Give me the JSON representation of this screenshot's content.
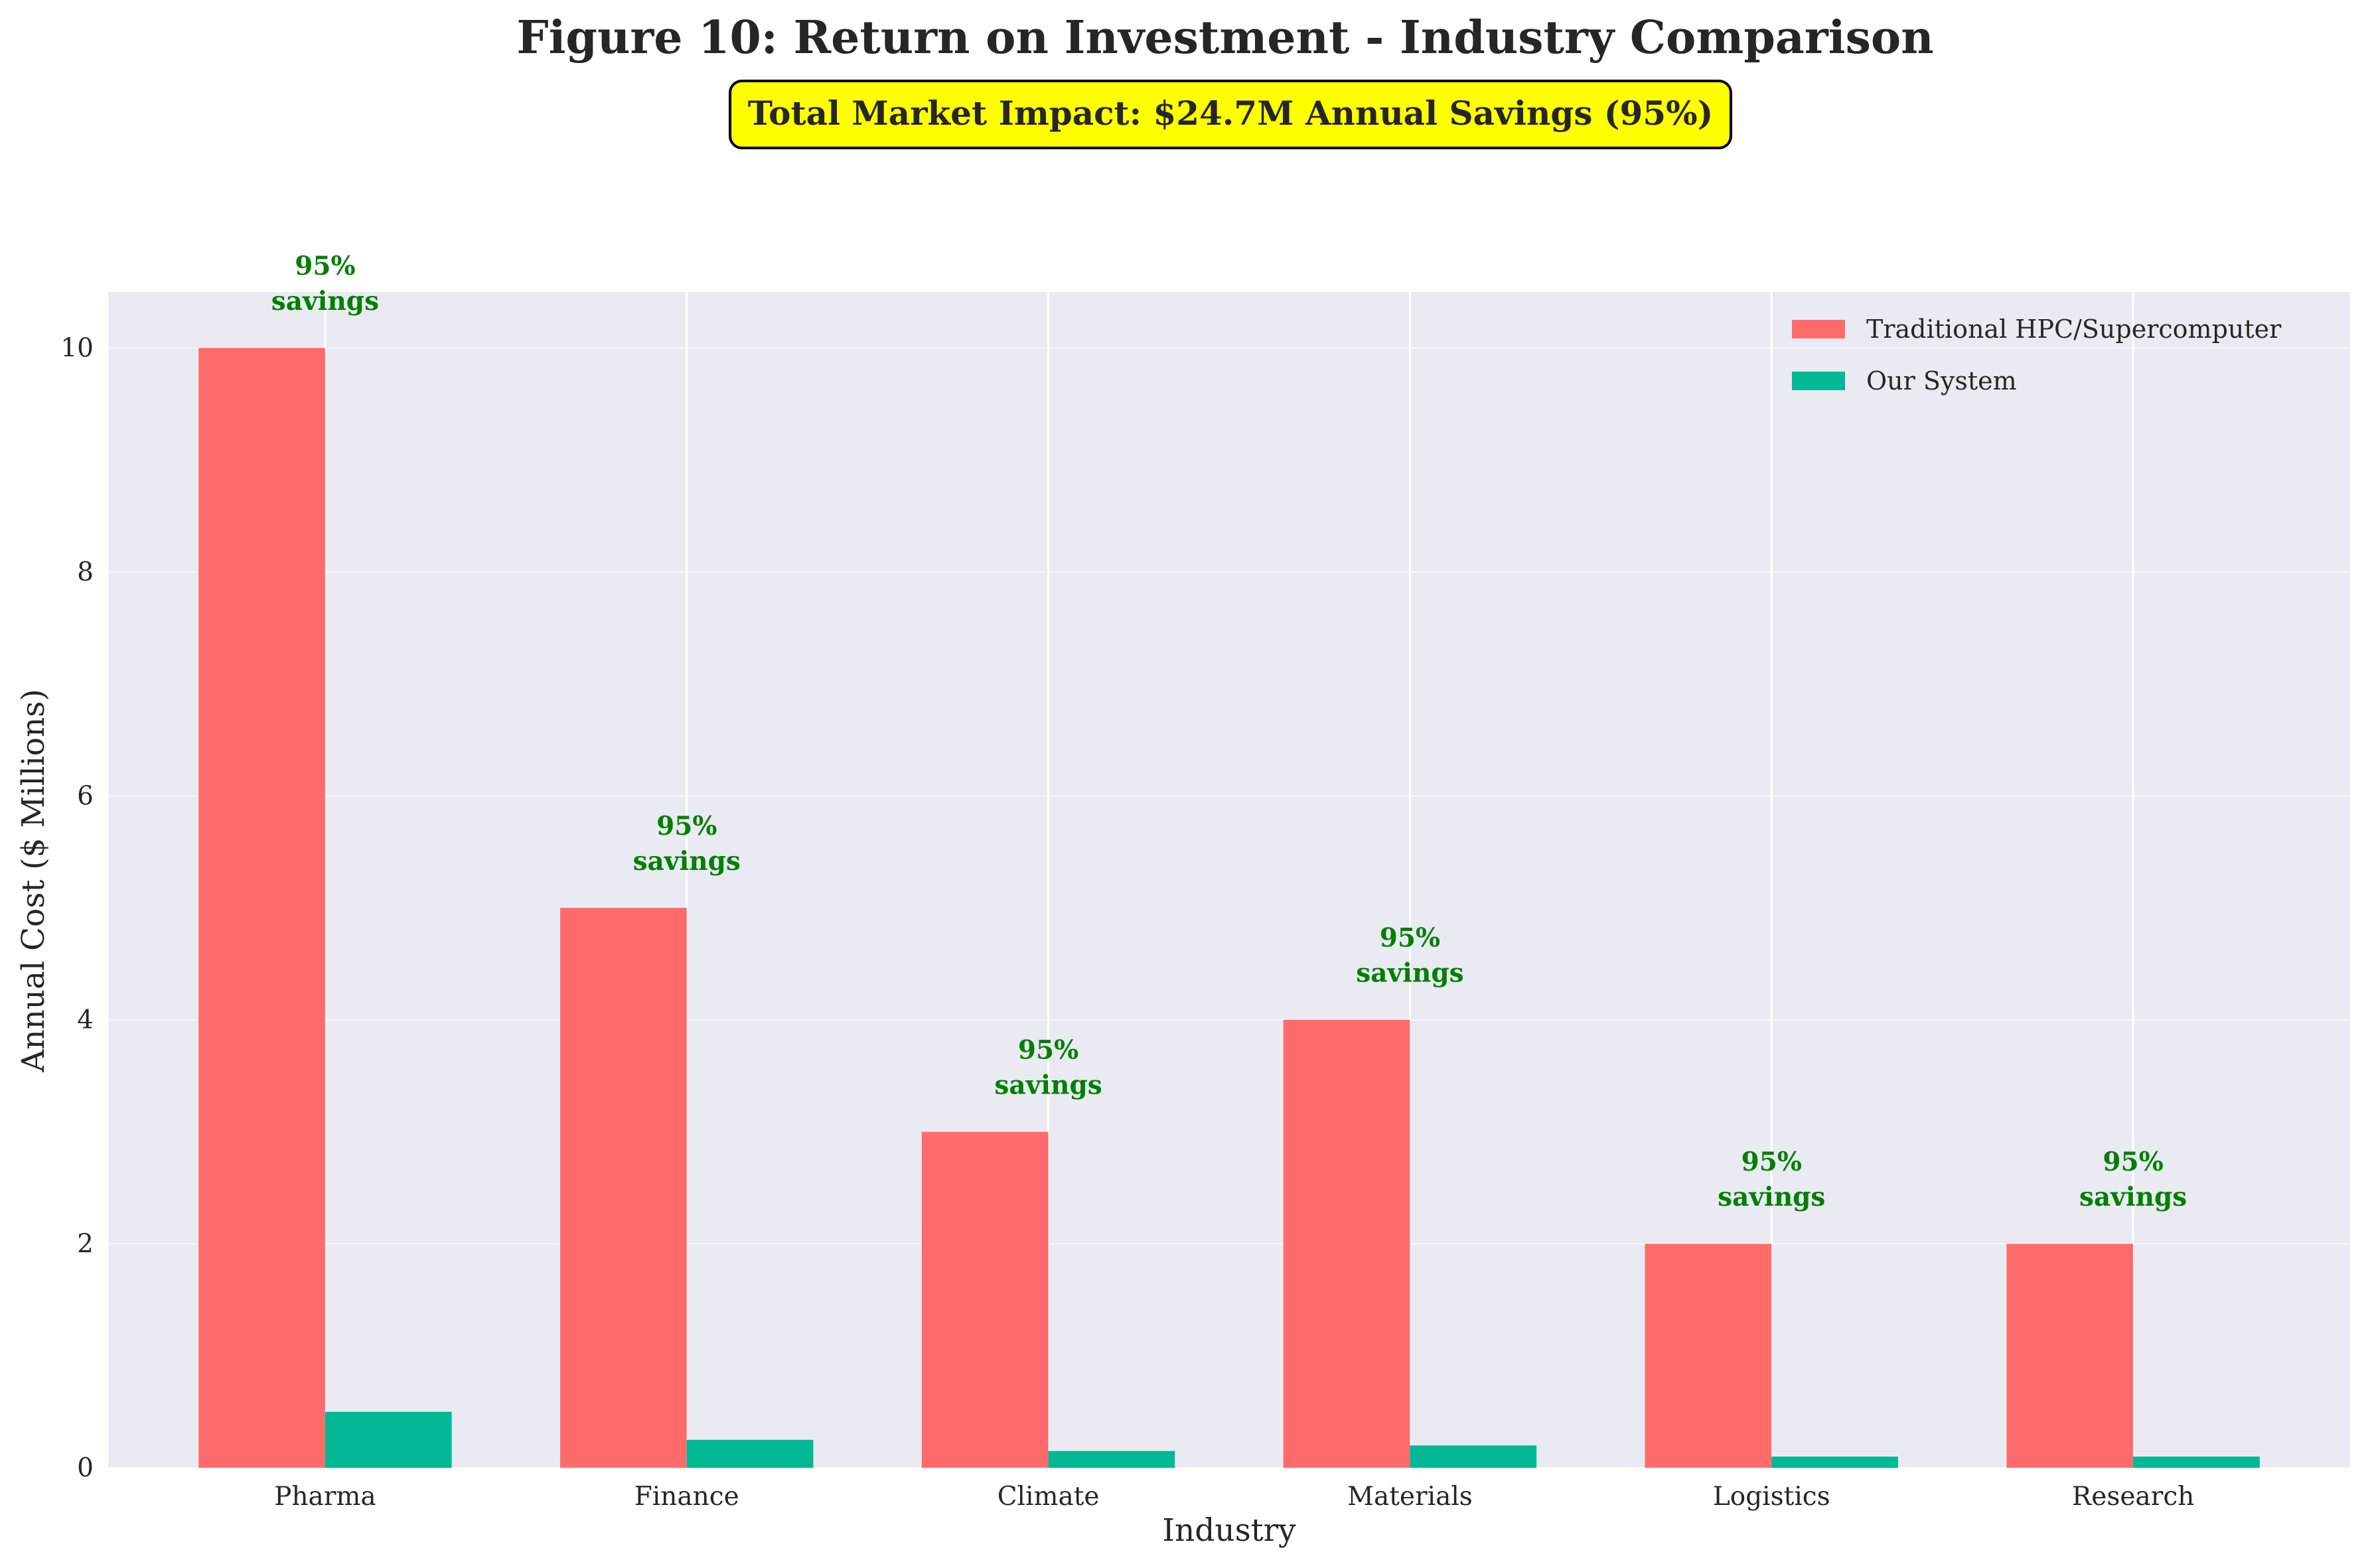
{
  "chart_data": {
    "type": "bar",
    "title": "Figure 10: Return on Investment - Industry Comparison",
    "subtitle": "Total Market Impact: $24.7M Annual Savings (95%)",
    "xlabel": "Industry",
    "ylabel": "Annual Cost ($ Millions)",
    "categories": [
      "Pharma",
      "Finance",
      "Climate",
      "Materials",
      "Logistics",
      "Research"
    ],
    "series": [
      {
        "name": "Traditional HPC/Supercomputer",
        "values": [
          10,
          5,
          3,
          4,
          2,
          2
        ],
        "color": "#ff6b6b"
      },
      {
        "name": "Our System",
        "values": [
          0.5,
          0.25,
          0.15,
          0.2,
          0.1,
          0.1
        ],
        "color": "#00b894"
      }
    ],
    "annotations": [
      {
        "category": "Pharma",
        "line1": "95%",
        "line2": "savings"
      },
      {
        "category": "Finance",
        "line1": "95%",
        "line2": "savings"
      },
      {
        "category": "Climate",
        "line1": "95%",
        "line2": "savings"
      },
      {
        "category": "Materials",
        "line1": "95%",
        "line2": "savings"
      },
      {
        "category": "Logistics",
        "line1": "95%",
        "line2": "savings"
      },
      {
        "category": "Research",
        "line1": "95%",
        "line2": "savings"
      }
    ],
    "annotation_color": "#008000",
    "ylim": [
      0,
      10.5
    ],
    "yticks": [
      0,
      2,
      4,
      6,
      8,
      10
    ],
    "grid": true,
    "legend_position": "top-right",
    "plot_background": "#eaeaf2",
    "banner_color": "#ffff00"
  }
}
